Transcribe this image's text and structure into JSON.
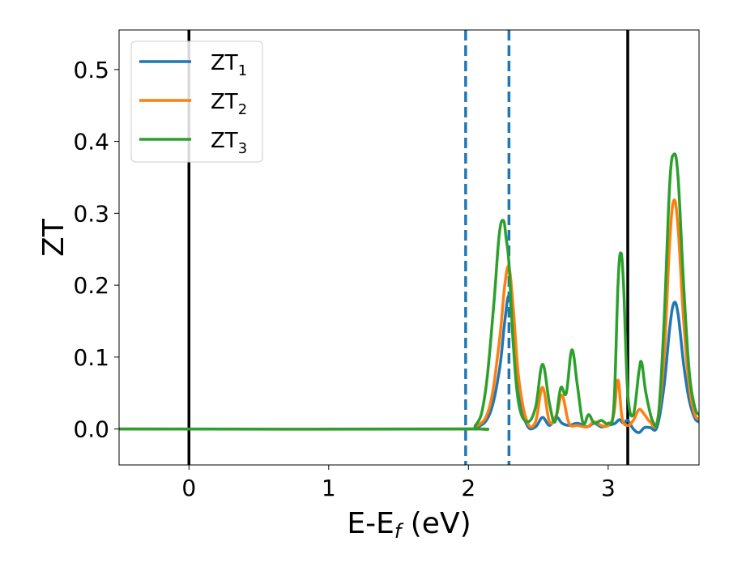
{
  "chart_data": {
    "type": "line",
    "xlabel": "E-E",
    "xlabel_sub": "f",
    "xlabel_unit": " (eV)",
    "ylabel": "ZT",
    "xlim": [
      -0.5,
      3.65
    ],
    "ylim": [
      -0.05,
      0.555
    ],
    "xticks": [
      0,
      1,
      2,
      3
    ],
    "xtick_labels": [
      "0",
      "1",
      "2",
      "3"
    ],
    "yticks": [
      0.0,
      0.1,
      0.2,
      0.3,
      0.4,
      0.5
    ],
    "ytick_labels": [
      "0.0",
      "0.1",
      "0.2",
      "0.3",
      "0.4",
      "0.5"
    ],
    "grid": false,
    "legend_position": "top-left",
    "vlines": [
      {
        "x": 0.0,
        "style": "solid",
        "color": "#000000"
      },
      {
        "x": 1.98,
        "style": "dashed",
        "color": "#1f77b4"
      },
      {
        "x": 2.29,
        "style": "dashed",
        "color": "#1f77b4"
      },
      {
        "x": 3.14,
        "style": "solid",
        "color": "#000000"
      }
    ],
    "series": [
      {
        "name": "ZT",
        "name_sub": "1",
        "color": "#1f77b4",
        "x": [
          -0.5,
          1.9,
          2.05,
          2.15,
          2.22,
          2.26,
          2.29,
          2.32,
          2.36,
          2.42,
          2.48,
          2.53,
          2.58,
          2.63,
          2.67,
          2.72,
          2.78,
          2.85,
          2.9,
          2.95,
          3.0,
          3.05,
          3.08,
          3.11,
          3.14,
          3.18,
          3.22,
          3.26,
          3.3,
          3.35,
          3.4,
          3.44,
          3.47,
          3.5,
          3.54,
          3.58,
          3.62,
          3.65
        ],
        "y": [
          0.0,
          0.0,
          0.002,
          0.02,
          0.08,
          0.15,
          0.185,
          0.14,
          0.05,
          0.005,
          0.003,
          0.016,
          0.005,
          0.016,
          0.008,
          0.005,
          0.008,
          0.003,
          0.008,
          0.003,
          0.005,
          0.008,
          0.013,
          0.008,
          0.012,
          0.0,
          -0.005,
          0.002,
          0.002,
          0.003,
          0.06,
          0.14,
          0.175,
          0.16,
          0.09,
          0.04,
          0.015,
          0.01
        ]
      },
      {
        "name": "ZT",
        "name_sub": "2",
        "color": "#ff7f0e",
        "x": [
          -0.5,
          1.9,
          2.05,
          2.15,
          2.22,
          2.26,
          2.29,
          2.32,
          2.36,
          2.42,
          2.48,
          2.53,
          2.58,
          2.63,
          2.67,
          2.72,
          2.78,
          2.85,
          2.9,
          2.95,
          3.0,
          3.04,
          3.07,
          3.1,
          3.14,
          3.18,
          3.22,
          3.26,
          3.3,
          3.35,
          3.4,
          3.44,
          3.47,
          3.5,
          3.54,
          3.58,
          3.62,
          3.65
        ],
        "y": [
          0.0,
          0.0,
          0.003,
          0.03,
          0.12,
          0.2,
          0.225,
          0.17,
          0.07,
          0.01,
          0.01,
          0.058,
          0.01,
          0.02,
          0.047,
          0.008,
          0.005,
          0.003,
          0.01,
          0.005,
          0.005,
          0.02,
          0.068,
          0.015,
          0.005,
          0.012,
          0.027,
          0.02,
          0.01,
          0.01,
          0.1,
          0.26,
          0.318,
          0.28,
          0.15,
          0.06,
          0.02,
          0.015
        ]
      },
      {
        "name": "ZT",
        "name_sub": "3",
        "color": "#2ca02c",
        "x": [
          -0.5,
          1.9,
          2.05,
          2.12,
          2.18,
          2.22,
          2.25,
          2.27,
          2.29,
          2.32,
          2.36,
          2.42,
          2.48,
          2.53,
          2.58,
          2.62,
          2.66,
          2.7,
          2.74,
          2.78,
          2.82,
          2.86,
          2.9,
          2.95,
          3.0,
          3.04,
          3.07,
          3.09,
          3.11,
          3.14,
          3.18,
          3.22,
          3.24,
          3.27,
          3.32,
          3.36,
          3.4,
          3.44,
          3.47,
          3.5,
          3.54,
          3.58,
          3.62,
          3.65
        ],
        "y": [
          0.0,
          0.0,
          0.005,
          0.05,
          0.17,
          0.27,
          0.29,
          0.265,
          0.23,
          0.12,
          0.035,
          0.01,
          0.03,
          0.09,
          0.035,
          0.01,
          0.057,
          0.05,
          0.11,
          0.06,
          0.008,
          0.02,
          0.008,
          0.012,
          0.008,
          0.03,
          0.2,
          0.245,
          0.2,
          0.05,
          0.02,
          0.08,
          0.092,
          0.05,
          0.01,
          0.02,
          0.15,
          0.34,
          0.382,
          0.35,
          0.2,
          0.08,
          0.03,
          0.02
        ]
      }
    ]
  }
}
